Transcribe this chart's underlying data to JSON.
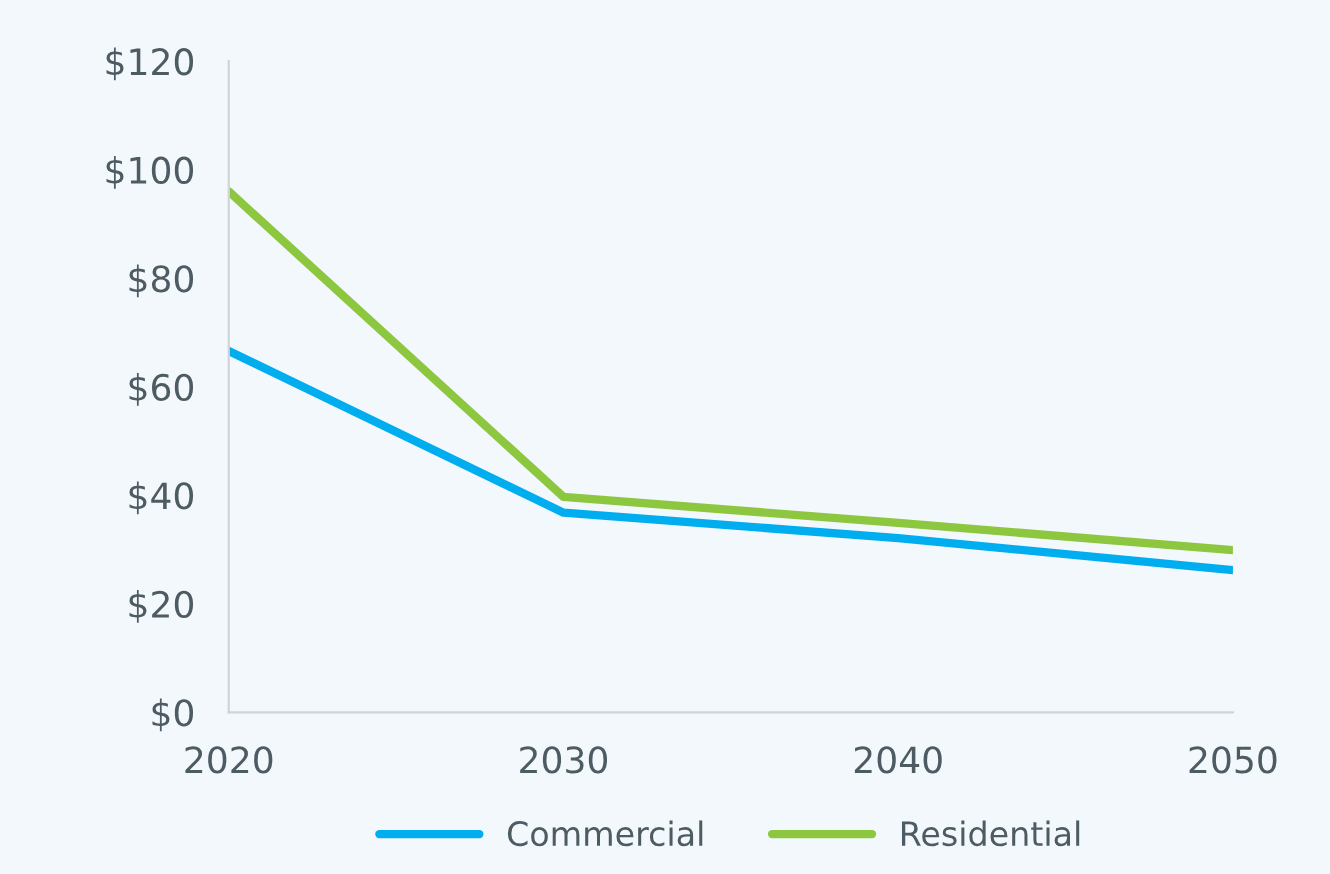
{
  "chart_data": {
    "type": "line",
    "x": [
      2020,
      2030,
      2040,
      2050
    ],
    "series": [
      {
        "name": "Commercial",
        "color": "#00aeef",
        "values": [
          66.6,
          36.8,
          32.1,
          26.2
        ]
      },
      {
        "name": "Residential",
        "color": "#8dc63f",
        "values": [
          96,
          39.7,
          34.9,
          29.9
        ]
      }
    ],
    "xlim": [
      2020,
      2050
    ],
    "xticks": [
      2020,
      2030,
      2040,
      2050
    ],
    "ylim": [
      0,
      120
    ],
    "yticks": [
      {
        "value": 0,
        "label": "$0"
      },
      {
        "value": 20,
        "label": "$20"
      },
      {
        "value": 40,
        "label": "$40"
      },
      {
        "value": 60,
        "label": "$60"
      },
      {
        "value": 80,
        "label": "$80"
      },
      {
        "value": 100,
        "label": "$100"
      },
      {
        "value": 120,
        "label": "$120"
      }
    ],
    "grid": false,
    "legend": "bottom",
    "marker": "none",
    "line_style": "solid"
  }
}
